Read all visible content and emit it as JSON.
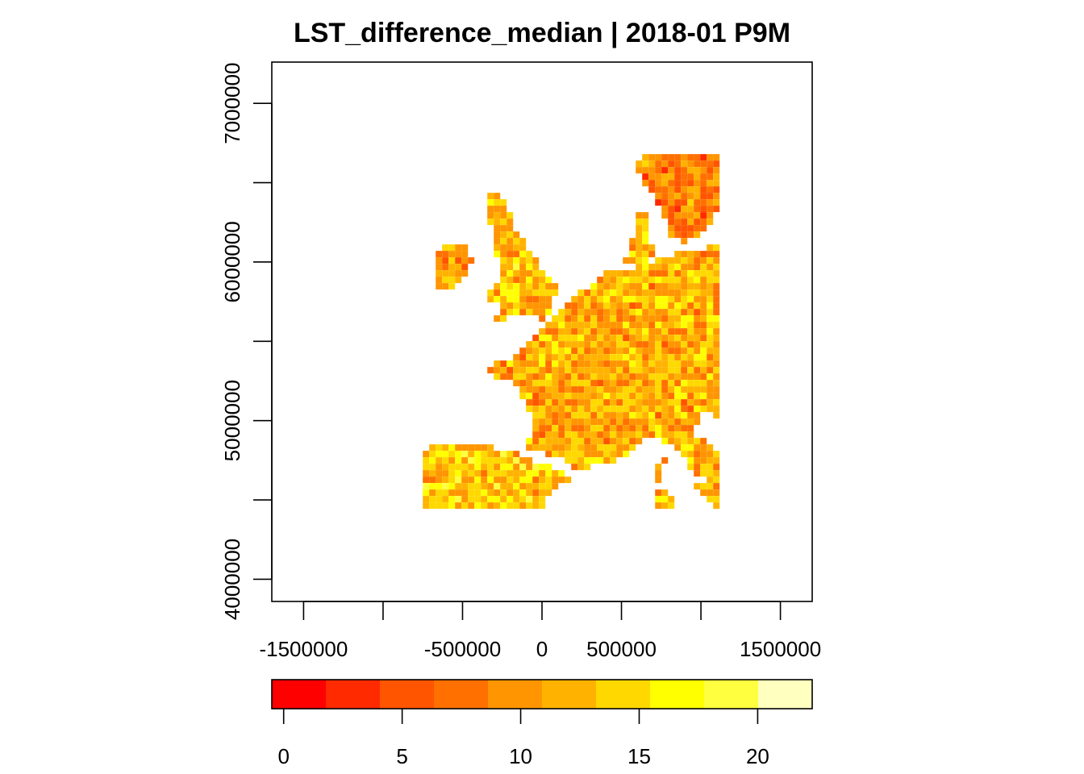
{
  "chart_data": {
    "type": "heatmap",
    "title": "LST_difference_median | 2018-01 P9M",
    "xlabel": "",
    "ylabel": "",
    "x_axis": {
      "ticks": [
        -1500000,
        -1000000,
        -500000,
        0,
        500000,
        1000000,
        1500000
      ],
      "tick_labels": [
        "-1500000",
        "",
        "-500000",
        "0",
        "500000",
        "",
        "1500000"
      ]
    },
    "y_axis": {
      "ticks": [
        4000000,
        4500000,
        5000000,
        5500000,
        6000000,
        6500000,
        7000000
      ],
      "tick_labels": [
        "4000000",
        "",
        "5000000",
        "",
        "6000000",
        "",
        "7000000"
      ]
    },
    "xlim": [
      -1700000,
      1700000
    ],
    "ylim": [
      3860000,
      7260000
    ],
    "data_extent": {
      "x": [
        -750000,
        1100000
      ],
      "y": [
        4450000,
        6680000
      ]
    },
    "description_values": {
      "range_min": 0,
      "range_max": 22,
      "typical_range": [
        7,
        16
      ]
    },
    "legend": {
      "position": "bottom",
      "range": [
        -0.5,
        22.3
      ],
      "breaks": [
        -0.5,
        1.78,
        4.06,
        6.34,
        8.62,
        10.9,
        13.18,
        15.46,
        17.74,
        20.02,
        22.3
      ],
      "colors": [
        "#FF0000",
        "#FF2A00",
        "#FF5500",
        "#FF7000",
        "#FF9500",
        "#FFB300",
        "#FFD800",
        "#FFFF00",
        "#FFFF40",
        "#FFFFBF"
      ],
      "ticks": [
        0,
        5,
        10,
        15,
        20
      ],
      "tick_labels": [
        "0",
        "5",
        "10",
        "15",
        "20"
      ]
    },
    "grid": false
  }
}
